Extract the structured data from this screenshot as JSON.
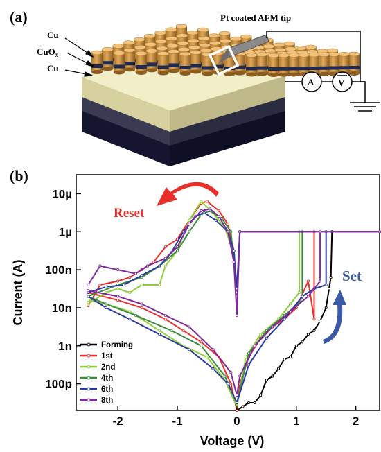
{
  "panel_a": {
    "label": "(a)",
    "tip_label": "Pt coated AFM tip",
    "layer_labels": [
      "Cu",
      "CuO",
      "x",
      "Cu"
    ],
    "ammeter": "A",
    "voltmeter": "V"
  },
  "panel_b": {
    "label": "(b)",
    "reset_label": "Reset",
    "set_label": "Set"
  },
  "chart_data": {
    "type": "line",
    "xlabel": "Voltage (V)",
    "ylabel": "Current (A)",
    "xlim": [
      -2.7,
      2.4
    ],
    "ylim_log10": [
      -10.7,
      -4.5
    ],
    "y_scale": "log",
    "x_ticks": [
      -2,
      -1,
      0,
      1,
      2
    ],
    "x_tick_labels": [
      "-2",
      "-1",
      "0",
      "1",
      "2"
    ],
    "y_ticks_log10": [
      -5,
      -6,
      -7,
      -8,
      -9,
      -10
    ],
    "y_tick_labels": [
      "10µ",
      "1µ",
      "100n",
      "10n",
      "1n",
      "100p"
    ],
    "compliance_log10": -6,
    "legend_position": "bottom-left",
    "series": [
      {
        "name": "Forming",
        "color": "#000000",
        "points": [
          [
            0.0,
            -10.7
          ],
          [
            0.1,
            -10.6
          ],
          [
            0.2,
            -10.5
          ],
          [
            0.3,
            -10.5
          ],
          [
            0.4,
            -10.3
          ],
          [
            0.5,
            -9.9
          ],
          [
            0.6,
            -9.8
          ],
          [
            0.7,
            -9.6
          ],
          [
            0.8,
            -9.35
          ],
          [
            0.9,
            -9.3
          ],
          [
            1.0,
            -9.0
          ],
          [
            1.1,
            -8.9
          ],
          [
            1.2,
            -8.7
          ],
          [
            1.3,
            -8.6
          ],
          [
            1.4,
            -8.35
          ],
          [
            1.5,
            -8.0
          ],
          [
            1.55,
            -7.5
          ],
          [
            1.58,
            -7.2
          ],
          [
            1.6,
            -6.0
          ],
          [
            2.4,
            -6.0
          ]
        ]
      },
      {
        "name": "1st",
        "color": "#e8302a",
        "points": [
          [
            -2.5,
            -7.95
          ],
          [
            -2.3,
            -7.4
          ],
          [
            -2.0,
            -7.3
          ],
          [
            -1.8,
            -7.2
          ],
          [
            -1.6,
            -7.0
          ],
          [
            -1.4,
            -6.8
          ],
          [
            -1.2,
            -6.4
          ],
          [
            -1.0,
            -6.2
          ],
          [
            -0.8,
            -5.7
          ],
          [
            -0.6,
            -5.25
          ],
          [
            -0.5,
            -5.2
          ],
          [
            -0.3,
            -5.45
          ],
          [
            -0.15,
            -5.8
          ],
          [
            -0.05,
            -6.5
          ],
          [
            0.0,
            -7.7
          ],
          [
            0.05,
            -6.0
          ],
          [
            1.3,
            -6.0
          ],
          [
            1.3,
            -8.3
          ],
          [
            1.2,
            -7.3
          ],
          [
            1.0,
            -8.0
          ],
          [
            0.8,
            -8.3
          ],
          [
            0.6,
            -8.5
          ],
          [
            0.4,
            -8.8
          ],
          [
            0.2,
            -9.3
          ],
          [
            0.05,
            -10.0
          ],
          [
            0.0,
            -10.7
          ],
          [
            -0.1,
            -10.0
          ],
          [
            -0.3,
            -9.3
          ],
          [
            -0.6,
            -8.9
          ],
          [
            -0.9,
            -8.6
          ],
          [
            -1.2,
            -8.3
          ],
          [
            -1.6,
            -8.0
          ],
          [
            -2.0,
            -7.8
          ],
          [
            -2.5,
            -7.6
          ]
        ]
      },
      {
        "name": "2nd",
        "color": "#8ecf3a",
        "points": [
          [
            -2.5,
            -7.9
          ],
          [
            -2.2,
            -7.6
          ],
          [
            -2.0,
            -7.5
          ],
          [
            -1.8,
            -7.6
          ],
          [
            -1.6,
            -7.4
          ],
          [
            -1.3,
            -7.4
          ],
          [
            -1.2,
            -6.9
          ],
          [
            -1.0,
            -6.5
          ],
          [
            -0.8,
            -5.7
          ],
          [
            -0.6,
            -5.2
          ],
          [
            -0.4,
            -5.5
          ],
          [
            -0.2,
            -5.9
          ],
          [
            -0.05,
            -6.6
          ],
          [
            0.0,
            -7.6
          ],
          [
            0.05,
            -6.0
          ],
          [
            1.05,
            -6.0
          ],
          [
            1.05,
            -7.6
          ],
          [
            0.9,
            -7.9
          ],
          [
            0.7,
            -8.3
          ],
          [
            0.4,
            -8.7
          ],
          [
            0.15,
            -9.3
          ],
          [
            0.0,
            -10.6
          ],
          [
            -0.2,
            -9.9
          ],
          [
            -0.5,
            -9.3
          ],
          [
            -0.9,
            -9.0
          ],
          [
            -1.3,
            -8.6
          ],
          [
            -1.8,
            -8.1
          ],
          [
            -2.2,
            -7.9
          ],
          [
            -2.5,
            -7.8
          ]
        ]
      },
      {
        "name": "4th",
        "color": "#3e8a3e",
        "points": [
          [
            -2.5,
            -7.7
          ],
          [
            -2.0,
            -7.4
          ],
          [
            -1.6,
            -7.2
          ],
          [
            -1.3,
            -6.9
          ],
          [
            -1.0,
            -6.5
          ],
          [
            -0.8,
            -6.0
          ],
          [
            -0.6,
            -5.55
          ],
          [
            -0.45,
            -5.45
          ],
          [
            -0.25,
            -5.65
          ],
          [
            -0.1,
            -6.0
          ],
          [
            0.0,
            -7.6
          ],
          [
            0.05,
            -6.0
          ],
          [
            1.1,
            -6.0
          ],
          [
            1.1,
            -7.8
          ],
          [
            0.8,
            -8.2
          ],
          [
            0.5,
            -8.6
          ],
          [
            0.2,
            -9.2
          ],
          [
            0.0,
            -10.5
          ],
          [
            -0.2,
            -9.8
          ],
          [
            -0.6,
            -9.0
          ],
          [
            -1.1,
            -8.6
          ],
          [
            -1.7,
            -8.2
          ],
          [
            -2.2,
            -7.9
          ],
          [
            -2.5,
            -7.7
          ]
        ]
      },
      {
        "name": "6th",
        "color": "#2b3a9e",
        "points": [
          [
            -2.5,
            -7.6
          ],
          [
            -2.2,
            -7.45
          ],
          [
            -1.9,
            -7.4
          ],
          [
            -1.6,
            -7.15
          ],
          [
            -1.3,
            -6.9
          ],
          [
            -1.1,
            -6.55
          ],
          [
            -0.9,
            -6.0
          ],
          [
            -0.7,
            -5.6
          ],
          [
            -0.55,
            -5.5
          ],
          [
            -0.35,
            -5.7
          ],
          [
            -0.15,
            -6.0
          ],
          [
            -0.05,
            -6.5
          ],
          [
            0.0,
            -7.5
          ],
          [
            0.05,
            -6.0
          ],
          [
            1.5,
            -6.0
          ],
          [
            1.5,
            -7.4
          ],
          [
            1.3,
            -7.5
          ],
          [
            1.1,
            -7.7
          ],
          [
            0.8,
            -8.3
          ],
          [
            0.5,
            -8.8
          ],
          [
            0.2,
            -9.5
          ],
          [
            0.0,
            -10.5
          ],
          [
            -0.15,
            -10.0
          ],
          [
            -0.4,
            -9.6
          ],
          [
            -0.8,
            -9.1
          ],
          [
            -1.3,
            -8.7
          ],
          [
            -1.8,
            -8.3
          ],
          [
            -2.2,
            -8.0
          ],
          [
            -2.5,
            -7.7
          ]
        ]
      },
      {
        "name": "8th",
        "color": "#7e2a9e",
        "points": [
          [
            -2.5,
            -7.4
          ],
          [
            -2.3,
            -6.9
          ],
          [
            -2.0,
            -7.0
          ],
          [
            -1.7,
            -7.1
          ],
          [
            -1.5,
            -6.9
          ],
          [
            -1.2,
            -6.7
          ],
          [
            -1.0,
            -6.4
          ],
          [
            -0.8,
            -5.8
          ],
          [
            -0.6,
            -5.45
          ],
          [
            -0.45,
            -5.4
          ],
          [
            -0.3,
            -5.6
          ],
          [
            -0.15,
            -6.0
          ],
          [
            -0.05,
            -6.8
          ],
          [
            0.0,
            -8.2
          ],
          [
            0.05,
            -6.0
          ],
          [
            2.4,
            -6.0
          ],
          [
            1.4,
            -6.0
          ],
          [
            1.4,
            -7.3
          ],
          [
            1.2,
            -7.7
          ],
          [
            0.9,
            -8.1
          ],
          [
            0.6,
            -8.5
          ],
          [
            0.3,
            -9.0
          ],
          [
            0.05,
            -9.8
          ],
          [
            0.0,
            -10.3
          ],
          [
            -0.1,
            -9.7
          ],
          [
            -0.4,
            -9.1
          ],
          [
            -0.8,
            -8.5
          ],
          [
            -1.2,
            -8.2
          ],
          [
            -1.6,
            -7.9
          ],
          [
            -2.0,
            -7.7
          ],
          [
            -2.5,
            -7.55
          ]
        ]
      }
    ]
  }
}
